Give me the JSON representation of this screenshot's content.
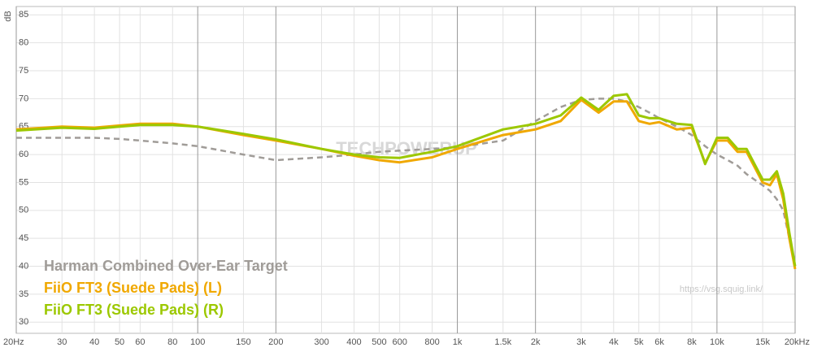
{
  "chart_data": {
    "type": "line",
    "y_label": "dB",
    "watermark": "TECHPOWERUP",
    "source": "https://vsg.squig.link/",
    "log_x": true,
    "grid": true,
    "xlim": [
      20,
      20000
    ],
    "ylim": [
      28,
      86.5
    ],
    "xticks": [
      {
        "value": 20,
        "label": "20Hz"
      },
      30,
      40,
      50,
      60,
      80,
      100,
      150,
      200,
      300,
      400,
      500,
      600,
      800,
      {
        "value": 1000,
        "label": "1k"
      },
      {
        "value": 1500,
        "label": "1.5k"
      },
      {
        "value": 2000,
        "label": "2k"
      },
      {
        "value": 3000,
        "label": "3k"
      },
      {
        "value": 4000,
        "label": "4k"
      },
      {
        "value": 5000,
        "label": "5k"
      },
      {
        "value": 6000,
        "label": "6k"
      },
      {
        "value": 8000,
        "label": "8k"
      },
      {
        "value": 10000,
        "label": "10k"
      },
      {
        "value": 15000,
        "label": "15k"
      },
      {
        "value": 20000,
        "label": "20kHz"
      }
    ],
    "yticks": [
      30,
      35,
      40,
      45,
      50,
      55,
      60,
      65,
      70,
      75,
      80,
      85
    ],
    "x": [
      20,
      30,
      40,
      50,
      60,
      80,
      100,
      150,
      200,
      300,
      400,
      500,
      600,
      800,
      1000,
      1500,
      2000,
      2500,
      3000,
      3500,
      4000,
      4500,
      5000,
      5500,
      6000,
      7000,
      8000,
      9000,
      10000,
      11000,
      12000,
      13000,
      15000,
      16000,
      17000,
      18000,
      19000,
      20000
    ],
    "series": [
      {
        "name": "Harman Combined Over-Ear Target",
        "color": "#a09c98",
        "dashed": true,
        "values": [
          63,
          63,
          63,
          62.8,
          62.5,
          62,
          61.5,
          60,
          59,
          59.5,
          60,
          60.5,
          60.7,
          61,
          61.3,
          62.5,
          66,
          68.5,
          69.8,
          70,
          70,
          69.5,
          68.5,
          67.5,
          66.5,
          65,
          63.5,
          61.5,
          60,
          59,
          58,
          56.5,
          54.5,
          53.5,
          52,
          50,
          45,
          40
        ]
      },
      {
        "name": "FiiO FT3 (Suede Pads) (L)",
        "color": "#f0a800",
        "dashed": false,
        "values": [
          64.5,
          65,
          64.8,
          65.2,
          65.5,
          65.5,
          65,
          63.5,
          62.5,
          61,
          59.8,
          59,
          58.6,
          59.5,
          61,
          63.5,
          64.5,
          66,
          69.8,
          67.5,
          69.5,
          69.5,
          66,
          65.5,
          65.8,
          64.5,
          64.8,
          58.5,
          62.5,
          62.5,
          60.5,
          60.5,
          55,
          54.5,
          56.5,
          52,
          45,
          39.5
        ]
      },
      {
        "name": "FiiO FT3 (Suede Pads) (R)",
        "color": "#9cc800",
        "dashed": false,
        "values": [
          64.3,
          64.8,
          64.6,
          65,
          65.3,
          65.3,
          65,
          63.7,
          62.7,
          61,
          60,
          59.5,
          59.4,
          60.5,
          61.5,
          64.5,
          65.5,
          67,
          70.2,
          68,
          70.5,
          70.8,
          67,
          66.5,
          66.5,
          65.5,
          65.3,
          58.3,
          63,
          63,
          61,
          61,
          55.5,
          55.5,
          57,
          53,
          46,
          40
        ]
      }
    ]
  }
}
